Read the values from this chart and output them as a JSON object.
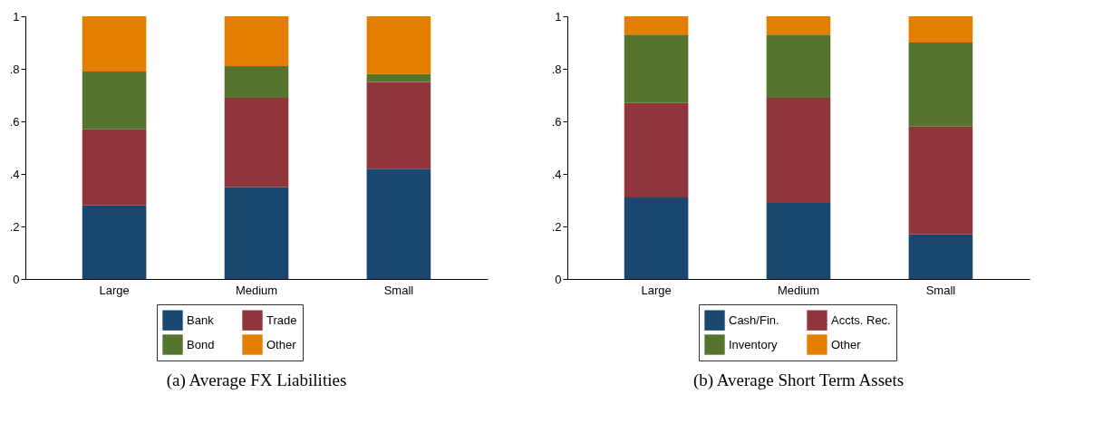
{
  "chart_data": [
    {
      "type": "bar",
      "stacked": true,
      "title": "(a) Average FX Liabilities",
      "categories": [
        "Large",
        "Medium",
        "Small"
      ],
      "ylim": [
        0,
        1
      ],
      "yticks": [
        {
          "value": 0,
          "label": "0"
        },
        {
          "value": 0.2,
          "label": ".2"
        },
        {
          "value": 0.4,
          "label": ".4"
        },
        {
          "value": 0.6,
          "label": ".6"
        },
        {
          "value": 0.8,
          "label": ".8"
        },
        {
          "value": 1,
          "label": "1"
        }
      ],
      "grid": false,
      "legend": "bottom",
      "series": [
        {
          "name": "Bank",
          "color": "#1a476f",
          "values": [
            0.28,
            0.35,
            0.42
          ]
        },
        {
          "name": "Trade",
          "color": "#90353b",
          "values": [
            0.29,
            0.34,
            0.33
          ]
        },
        {
          "name": "Bond",
          "color": "#55752f",
          "values": [
            0.22,
            0.12,
            0.03
          ]
        },
        {
          "name": "Other",
          "color": "#e37e00",
          "values": [
            0.21,
            0.19,
            0.22
          ]
        }
      ]
    },
    {
      "type": "bar",
      "stacked": true,
      "title": "(b) Average Short Term Assets",
      "categories": [
        "Large",
        "Medium",
        "Small"
      ],
      "ylim": [
        0,
        1
      ],
      "yticks": [
        {
          "value": 0,
          "label": "0"
        },
        {
          "value": 0.2,
          "label": ".2"
        },
        {
          "value": 0.4,
          "label": ".4"
        },
        {
          "value": 0.6,
          "label": ".6"
        },
        {
          "value": 0.8,
          "label": ".8"
        },
        {
          "value": 1,
          "label": "1"
        }
      ],
      "grid": false,
      "legend": "bottom",
      "series": [
        {
          "name": "Cash/Fin.",
          "color": "#1a476f",
          "values": [
            0.31,
            0.29,
            0.17
          ]
        },
        {
          "name": "Accts. Rec.",
          "color": "#90353b",
          "values": [
            0.36,
            0.4,
            0.41
          ]
        },
        {
          "name": "Inventory",
          "color": "#55752f",
          "values": [
            0.26,
            0.24,
            0.32
          ]
        },
        {
          "name": "Other",
          "color": "#e37e00",
          "values": [
            0.07,
            0.07,
            0.1
          ]
        }
      ]
    }
  ]
}
